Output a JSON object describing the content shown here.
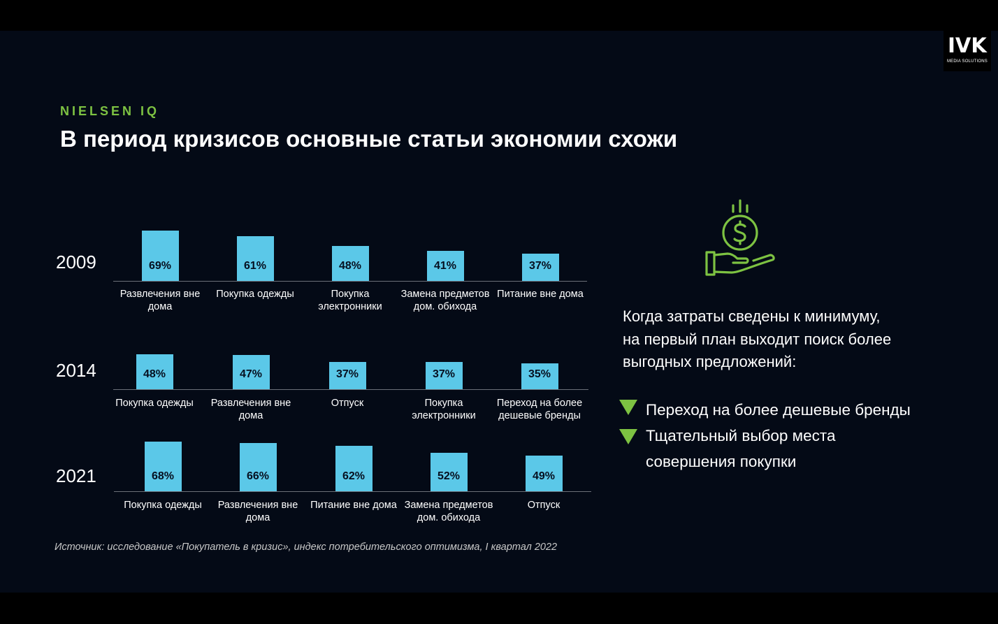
{
  "brand": {
    "logo_text": "IVK",
    "logo_subtext": "MEDIA SOLUTIONS"
  },
  "header": {
    "kicker": "NIELSEN IQ",
    "title": "В период кризисов основные статьи экономии схожи"
  },
  "chart_data": [
    {
      "type": "bar",
      "title": "2009",
      "categories": [
        "Развлечения вне дома",
        "Покупка одежды",
        "Покупка электронники",
        "Замена предметов дом. обихода",
        "Питание вне дома"
      ],
      "category_lines": [
        [
          "Развлечения вне",
          "дома"
        ],
        [
          "Покупка одежды"
        ],
        [
          "Покупка",
          "электронники"
        ],
        [
          "Замена предметов",
          "дом. обихода"
        ],
        [
          "Питание вне дома"
        ]
      ],
      "values": [
        69,
        61,
        48,
        41,
        37
      ],
      "value_labels": [
        "69%",
        "61%",
        "48%",
        "41%",
        "37%"
      ],
      "unit": "%",
      "color": "#5bc8e8"
    },
    {
      "type": "bar",
      "title": "2014",
      "categories": [
        "Покупка одежды",
        "Развлечения вне дома",
        "Отпуск",
        "Покупка электронники",
        "Переход на более дешевые бренды"
      ],
      "category_lines": [
        [
          "Покупка одежды"
        ],
        [
          "Развлечения вне",
          "дома"
        ],
        [
          "Отпуск"
        ],
        [
          "Покупка",
          "электронники"
        ],
        [
          "Переход на более",
          "дешевые бренды"
        ]
      ],
      "values": [
        48,
        47,
        37,
        37,
        35
      ],
      "value_labels": [
        "48%",
        "47%",
        "37%",
        "37%",
        "35%"
      ],
      "unit": "%",
      "color": "#5bc8e8"
    },
    {
      "type": "bar",
      "title": "2021",
      "categories": [
        "Покупка одежды",
        "Развлечения вне дома",
        "Питание вне дома",
        "Замена предметов дом. обихода",
        "Отпуск"
      ],
      "category_lines": [
        [
          "Покупка одежды"
        ],
        [
          "Развлечения вне",
          "дома"
        ],
        [
          "Питание вне дома"
        ],
        [
          "Замена предметов",
          "дом. обихода"
        ],
        [
          "Отпуск"
        ]
      ],
      "values": [
        68,
        66,
        62,
        52,
        49
      ],
      "value_labels": [
        "68%",
        "66%",
        "62%",
        "52%",
        "49%"
      ],
      "unit": "%",
      "color": "#5bc8e8"
    }
  ],
  "side_panel": {
    "icon": "money-hand-icon",
    "lead_lines": [
      "Когда затраты сведены к минимуму,",
      "на первый план выходит поиск более",
      "выгодных предложений:"
    ],
    "bullets": [
      {
        "lines": [
          "Переход на более дешевые бренды"
        ]
      },
      {
        "lines": [
          "Тщательный выбор места",
          "совершения покупки"
        ]
      }
    ],
    "accent_color": "#7dc242"
  },
  "footer": {
    "source": "Источник: исследование «Покупатель в кризис», индекс потребительского оптимизма, I квартал 2022"
  },
  "colors": {
    "background": "#040a16",
    "bar": "#5bc8e8",
    "accent": "#7dc242",
    "text": "#ffffff"
  }
}
